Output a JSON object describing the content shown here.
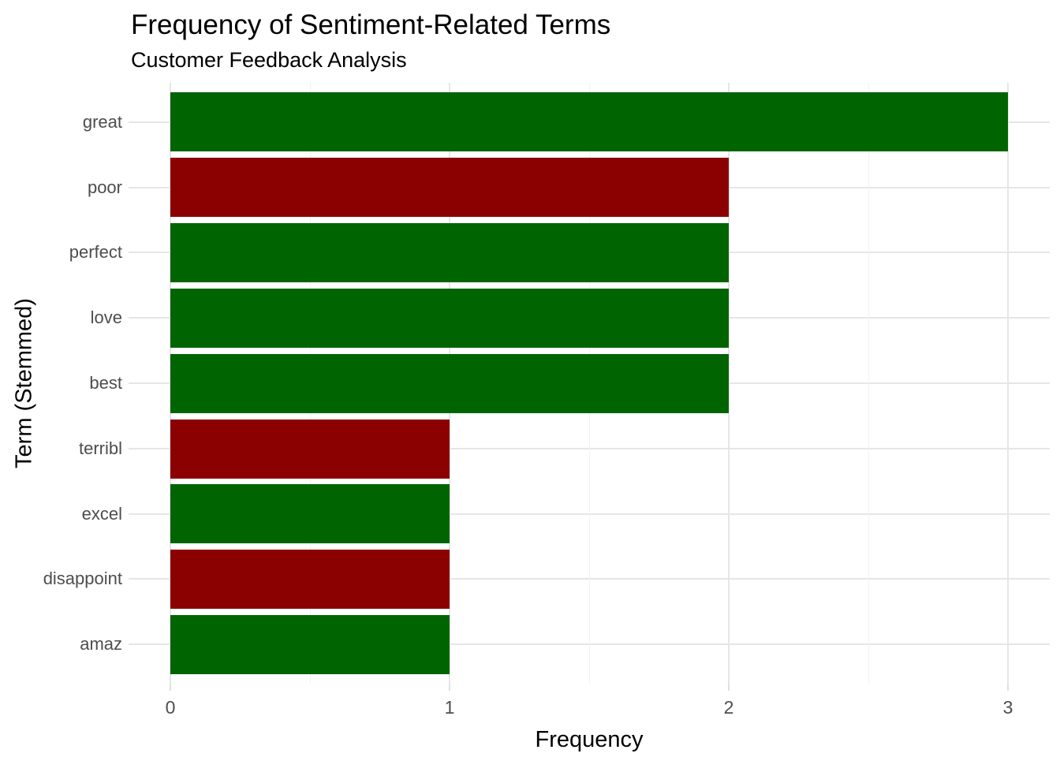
{
  "header": {
    "title": "Frequency of Sentiment-Related Terms",
    "subtitle": "Customer Feedback Analysis"
  },
  "chart_data": {
    "type": "bar",
    "orientation": "horizontal",
    "title": "Frequency of Sentiment-Related Terms",
    "subtitle": "Customer Feedback Analysis",
    "xlabel": "Frequency",
    "ylabel": "Term (Stemmed)",
    "categories": [
      "great",
      "poor",
      "perfect",
      "love",
      "best",
      "terribl",
      "excel",
      "disappoint",
      "amaz"
    ],
    "series": [
      {
        "name": "Frequency",
        "values": [
          3,
          2,
          2,
          2,
          2,
          1,
          1,
          1,
          1
        ]
      }
    ],
    "sentiments": [
      "positive",
      "negative",
      "positive",
      "positive",
      "positive",
      "negative",
      "positive",
      "negative",
      "positive"
    ],
    "colors": {
      "positive": "#006400",
      "negative": "#8b0000"
    },
    "x_ticks": [
      0,
      1,
      2,
      3
    ],
    "xlim": [
      0,
      3
    ],
    "grid": true,
    "legend_position": "none"
  },
  "style": {
    "background": "#ffffff",
    "grid_major": "#e6e6e6",
    "grid_minor": "#f2f2f2",
    "tick_mark": "#e0e0e0",
    "axis_text": "#4d4d4d",
    "title_text": "#000000"
  }
}
